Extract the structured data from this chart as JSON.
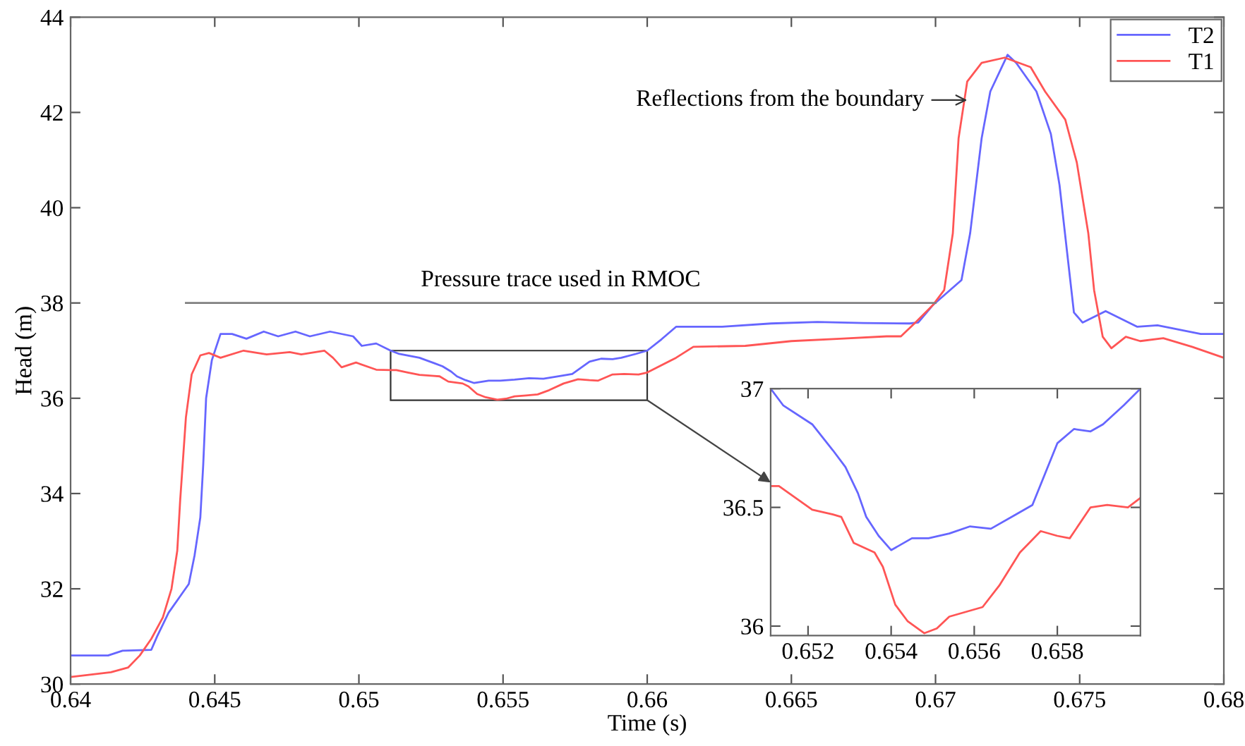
{
  "chart_data": [
    {
      "type": "line",
      "xlabel": "Time (s)",
      "ylabel": "Head (m)",
      "xlim": [
        0.64,
        0.68
      ],
      "ylim": [
        30,
        44
      ],
      "xticks": [
        0.64,
        0.645,
        0.65,
        0.655,
        0.66,
        0.665,
        0.67,
        0.675,
        0.68
      ],
      "yticks": [
        30,
        32,
        34,
        36,
        38,
        40,
        42,
        44
      ],
      "grid": false,
      "legend": "top right",
      "annotations": [
        {
          "text": "Pressure trace used in RMOC",
          "x": 0.657,
          "y": 38
        },
        {
          "text": "Reflections from the boundary",
          "x": 0.6711,
          "y": 42.26
        }
      ],
      "series": [
        {
          "name": "T2",
          "color": "#6666ff",
          "x": [
            0.64,
            0.6413,
            0.6418,
            0.6428,
            0.643,
            0.6434,
            0.6441,
            0.6443,
            0.6445,
            0.6446,
            0.6447,
            0.6449,
            0.6452,
            0.6456,
            0.6461,
            0.6467,
            0.6472,
            0.6478,
            0.6483,
            0.649,
            0.6498,
            0.6501,
            0.6506,
            0.6511,
            0.6514,
            0.6521,
            0.6526,
            0.6529,
            0.6532,
            0.6534,
            0.6537,
            0.654,
            0.6545,
            0.6549,
            0.6554,
            0.6559,
            0.6564,
            0.657,
            0.6574,
            0.6577,
            0.658,
            0.6584,
            0.6588,
            0.6591,
            0.6596,
            0.66,
            0.6605,
            0.661,
            0.6626,
            0.6643,
            0.6659,
            0.6675,
            0.6691,
            0.6694,
            0.6699,
            0.6709,
            0.6712,
            0.6716,
            0.6719,
            0.6725,
            0.6728,
            0.6735,
            0.674,
            0.6743,
            0.6746,
            0.6748,
            0.6751,
            0.6759,
            0.677,
            0.6777,
            0.6792,
            0.68
          ],
          "values": [
            30.6,
            30.6,
            30.7,
            30.72,
            31.0,
            31.5,
            32.1,
            32.7,
            33.5,
            34.6,
            36.0,
            36.8,
            37.35,
            37.35,
            37.25,
            37.4,
            37.3,
            37.4,
            37.3,
            37.4,
            37.3,
            37.1,
            37.15,
            37.0,
            36.93,
            36.85,
            36.74,
            36.67,
            36.56,
            36.46,
            36.38,
            36.32,
            36.37,
            36.37,
            36.39,
            36.42,
            36.41,
            36.47,
            36.51,
            36.64,
            36.77,
            36.83,
            36.82,
            36.85,
            36.93,
            37.0,
            37.24,
            37.5,
            37.5,
            37.57,
            37.6,
            37.58,
            37.57,
            37.59,
            37.95,
            38.48,
            39.46,
            41.46,
            42.44,
            43.21,
            43.04,
            42.44,
            41.55,
            40.48,
            38.87,
            37.8,
            37.59,
            37.83,
            37.5,
            37.53,
            37.35,
            37.35
          ]
        },
        {
          "name": "T1",
          "color": "#ff5555",
          "x": [
            0.64,
            0.6414,
            0.642,
            0.6424,
            0.6428,
            0.6432,
            0.6435,
            0.6437,
            0.6438,
            0.644,
            0.6442,
            0.6445,
            0.6448,
            0.6452,
            0.646,
            0.6468,
            0.6476,
            0.648,
            0.6488,
            0.6491,
            0.6494,
            0.6499,
            0.6506,
            0.6511,
            0.6513,
            0.6517,
            0.6521,
            0.6526,
            0.6528,
            0.6531,
            0.6536,
            0.6538,
            0.6541,
            0.6544,
            0.6548,
            0.6551,
            0.6554,
            0.6558,
            0.6562,
            0.6566,
            0.6571,
            0.6576,
            0.658,
            0.6583,
            0.6588,
            0.6592,
            0.6597,
            0.66,
            0.661,
            0.6616,
            0.6634,
            0.665,
            0.6667,
            0.6683,
            0.6688,
            0.6693,
            0.6699,
            0.6703,
            0.6706,
            0.6708,
            0.6711,
            0.6716,
            0.6724,
            0.6733,
            0.6738,
            0.6745,
            0.6749,
            0.6753,
            0.6755,
            0.6758,
            0.6761,
            0.6766,
            0.6771,
            0.6779,
            0.6789,
            0.68
          ],
          "values": [
            30.15,
            30.25,
            30.35,
            30.6,
            30.95,
            31.4,
            32.0,
            32.8,
            33.85,
            35.6,
            36.5,
            36.9,
            36.95,
            36.85,
            37.0,
            36.92,
            36.97,
            36.92,
            37.0,
            36.85,
            36.65,
            36.75,
            36.6,
            36.59,
            36.59,
            36.54,
            36.49,
            36.47,
            36.46,
            36.35,
            36.31,
            36.25,
            36.09,
            36.02,
            35.97,
            35.99,
            36.04,
            36.06,
            36.08,
            36.17,
            36.31,
            36.4,
            36.38,
            36.37,
            36.5,
            36.51,
            36.5,
            36.54,
            36.85,
            37.08,
            37.1,
            37.2,
            37.25,
            37.3,
            37.3,
            37.59,
            37.95,
            38.27,
            39.46,
            41.46,
            42.65,
            43.04,
            43.15,
            42.95,
            42.44,
            41.85,
            40.95,
            39.46,
            38.27,
            37.29,
            37.05,
            37.29,
            37.2,
            37.26,
            37.08,
            36.85
          ]
        },
        {
          "color": "#808080",
          "x": [
            0.644,
            0.67
          ],
          "values": [
            38,
            38
          ]
        }
      ]
    },
    {
      "type": "line",
      "xlim": [
        0.6511,
        0.66
      ],
      "ylim": [
        35.96,
        37
      ],
      "xticks": [
        0.652,
        0.654,
        0.656,
        0.658
      ],
      "yticks": [
        36,
        36.5,
        37
      ],
      "grid": false,
      "series": [
        {
          "color": "#6666ff",
          "x": [
            0.6511,
            0.6514,
            0.6521,
            0.6526,
            0.6529,
            0.6532,
            0.6534,
            0.6537,
            0.654,
            0.6545,
            0.6549,
            0.6554,
            0.6559,
            0.6564,
            0.657,
            0.6574,
            0.6577,
            0.658,
            0.6584,
            0.6588,
            0.6591,
            0.6596,
            0.66
          ],
          "values": [
            37.0,
            36.93,
            36.85,
            36.74,
            36.67,
            36.56,
            36.46,
            36.38,
            36.32,
            36.37,
            36.37,
            36.39,
            36.42,
            36.41,
            36.47,
            36.51,
            36.64,
            36.77,
            36.83,
            36.82,
            36.85,
            36.93,
            37.0
          ]
        },
        {
          "color": "#ff5555",
          "x": [
            0.6511,
            0.6513,
            0.6517,
            0.6521,
            0.6526,
            0.6528,
            0.6531,
            0.6536,
            0.6538,
            0.6541,
            0.6544,
            0.6548,
            0.6551,
            0.6554,
            0.6558,
            0.6562,
            0.6566,
            0.6571,
            0.6576,
            0.658,
            0.6583,
            0.6588,
            0.6592,
            0.6597,
            0.66
          ],
          "values": [
            36.59,
            36.59,
            36.54,
            36.49,
            36.47,
            36.46,
            36.35,
            36.31,
            36.25,
            36.09,
            36.02,
            35.97,
            35.99,
            36.04,
            36.06,
            36.08,
            36.17,
            36.31,
            36.4,
            36.38,
            36.37,
            36.5,
            36.51,
            36.5,
            36.54
          ]
        }
      ]
    }
  ]
}
